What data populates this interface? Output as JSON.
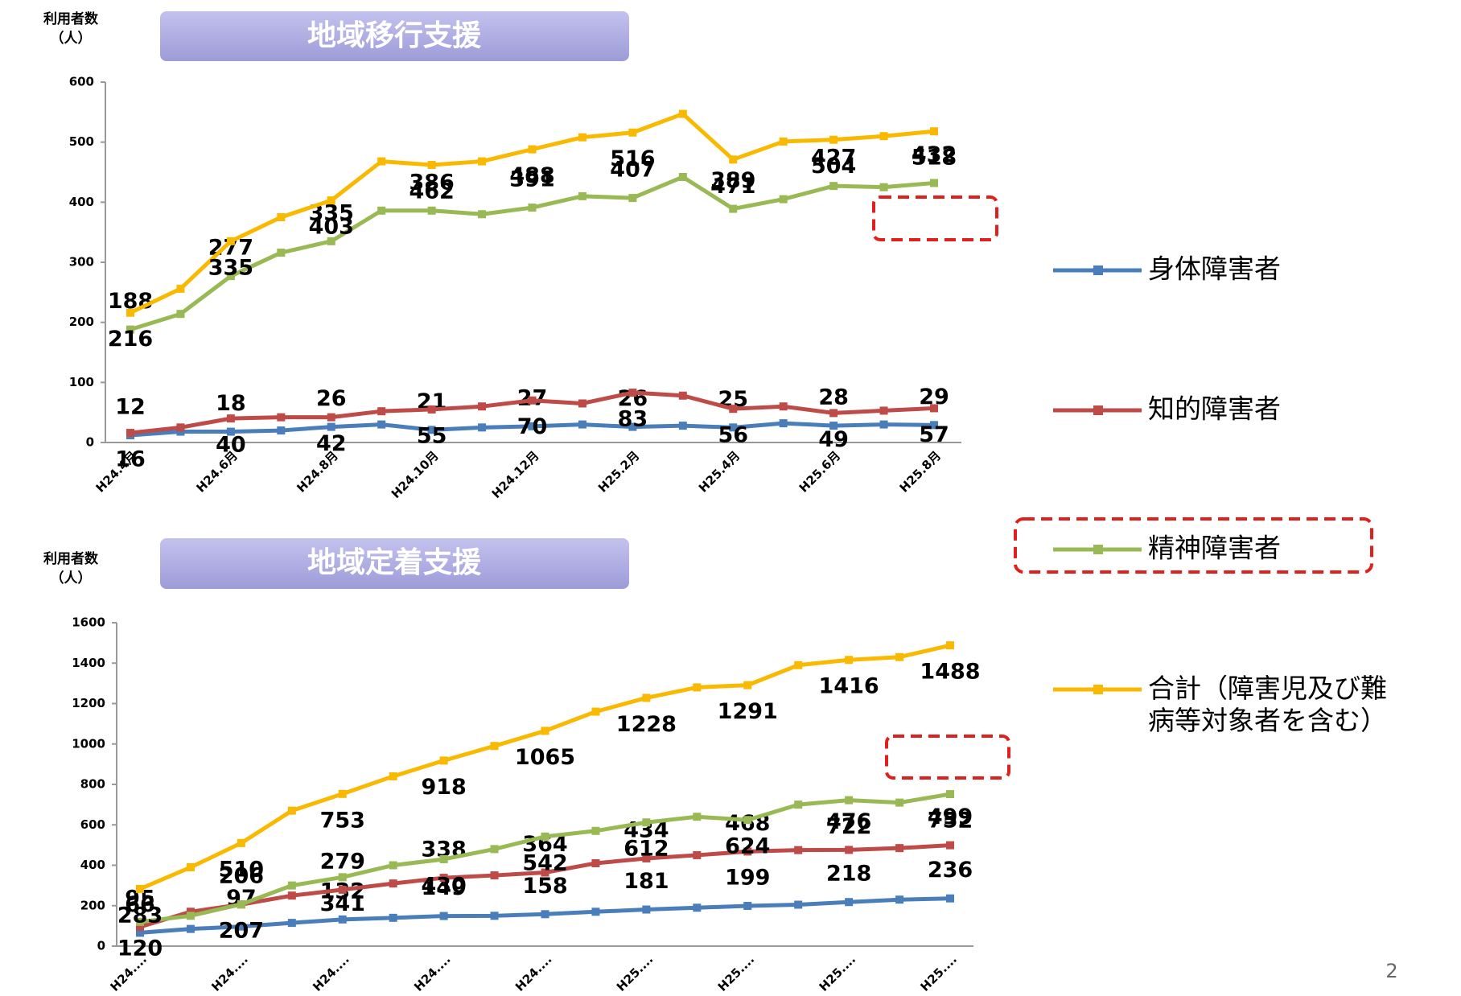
{
  "chart_data": [
    {
      "type": "line",
      "title": "地域移行支援",
      "y_label": [
        "利用者数",
        "（人）"
      ],
      "categories": [
        "H24.4月",
        null,
        "H24.6月",
        null,
        "H24.8月",
        null,
        "H24.10月",
        null,
        "H24.12月",
        null,
        "H25.2月",
        null,
        "H25.4月",
        null,
        "H25.6月",
        null,
        "H25.8月"
      ],
      "ylim": [
        0,
        600
      ],
      "yticks": [
        0,
        100,
        200,
        300,
        400,
        500,
        600
      ],
      "series": [
        {
          "name": "身体障害者",
          "color": "#4a7ebb",
          "values": [
            12,
            18,
            18,
            20,
            26,
            30,
            21,
            25,
            27,
            30,
            26,
            28,
            25,
            32,
            28,
            30,
            29
          ]
        },
        {
          "name": "知的障害者",
          "color": "#be4b48",
          "values": [
            16,
            25,
            40,
            42,
            42,
            52,
            55,
            60,
            70,
            65,
            83,
            78,
            56,
            60,
            49,
            53,
            57
          ]
        },
        {
          "name": "精神障害者",
          "color": "#98b954",
          "values": [
            188,
            214,
            277,
            316,
            335,
            386,
            386,
            380,
            391,
            410,
            407,
            442,
            389,
            405,
            427,
            425,
            432
          ]
        },
        {
          "name": "合計（障害児及び難病等対象者を含む）",
          "color": "#f9b900",
          "values": [
            216,
            256,
            335,
            375,
            403,
            468,
            462,
            468,
            488,
            508,
            516,
            547,
            471,
            501,
            504,
            510,
            518
          ]
        }
      ]
    },
    {
      "type": "line",
      "title": "地域定着支援",
      "y_label": [
        "利用者数",
        "（人）"
      ],
      "categories": [
        "H24....",
        null,
        "H24....",
        null,
        "H24....",
        null,
        "H24....",
        null,
        "H24....",
        null,
        "H25....",
        null,
        "H25....",
        null,
        "H25....",
        null,
        "H25...."
      ],
      "ylim": [
        0,
        1600
      ],
      "yticks": [
        0,
        200,
        400,
        600,
        800,
        1000,
        1200,
        1400,
        1600
      ],
      "series": [
        {
          "color": "#4a7ebb",
          "values": [
            66,
            85,
            97,
            115,
            132,
            140,
            149,
            150,
            158,
            170,
            181,
            190,
            199,
            205,
            218,
            230,
            236
          ]
        },
        {
          "color": "#be4b48",
          "values": [
            95,
            170,
            206,
            250,
            279,
            310,
            338,
            350,
            364,
            410,
            434,
            450,
            468,
            475,
            476,
            485,
            499
          ]
        },
        {
          "color": "#98b954",
          "values": [
            120,
            150,
            207,
            300,
            341,
            400,
            430,
            480,
            542,
            570,
            612,
            640,
            624,
            700,
            722,
            710,
            752
          ]
        },
        {
          "color": "#f9b900",
          "values": [
            283,
            390,
            510,
            670,
            753,
            840,
            918,
            990,
            1065,
            1160,
            1228,
            1280,
            1291,
            1390,
            1416,
            1430,
            1488
          ]
        }
      ]
    }
  ],
  "page_number": "2"
}
